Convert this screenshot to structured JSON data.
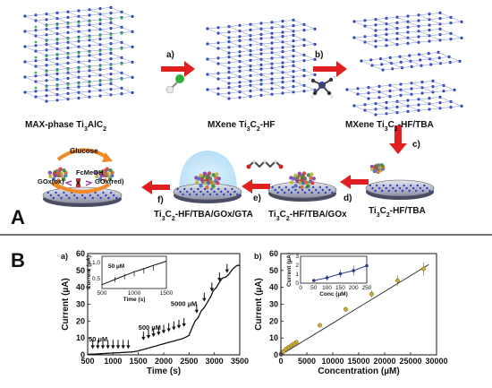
{
  "panelA": {
    "label": "A",
    "steps": {
      "a": "a)",
      "b": "b)",
      "c": "c)",
      "d": "d)",
      "e": "e)",
      "f": "f)"
    },
    "labels": {
      "max_phase": "MAX-phase Ti",
      "max_phase_sub1": "3",
      "max_phase_mid": "AlC",
      "max_phase_sub2": "2",
      "mxene_hf": "MXene Ti",
      "mxene_hf_sub1": "3",
      "mxene_hf_mid": "C",
      "mxene_hf_sub2": "2",
      "mxene_hf_tail": "-HF",
      "mxene_tba": "MXene Ti",
      "mxene_tba_sub1": "3",
      "mxene_tba_mid": "C",
      "mxene_tba_sub2": "2",
      "mxene_tba_tail": "-HF/TBA",
      "ti_hf_tba": "Ti",
      "ti_hf_tba_sub1": "3",
      "ti_hf_tba_mid": "C",
      "ti_hf_tba_sub2": "2",
      "ti_hf_tba_tail": "-HF/TBA",
      "gox": "Ti",
      "gox_sub1": "3",
      "gox_mid": "C",
      "gox_sub2": "2",
      "gox_tail": "-HF/TBA/GOx",
      "gta": "Ti",
      "gta_sub1": "3",
      "gta_mid": "C",
      "gta_sub2": "2",
      "gta_tail": "-HF/TBA/GOx/GTA",
      "glucose": "Glucose",
      "fcmeoh": "FcMeOH",
      "gox_ox": "GOx(ox)",
      "gox_red": "GOx(red)"
    }
  },
  "panelB": {
    "label": "B",
    "chart_data": [
      {
        "type": "line",
        "panel": "a)",
        "xlabel": "Time (s)",
        "ylabel": "Current (µA)",
        "xlim": [
          500,
          3500
        ],
        "ylim": [
          0,
          60
        ],
        "xticks": [
          500,
          1000,
          1500,
          2000,
          2500,
          3000,
          3500
        ],
        "yticks": [
          0,
          10,
          20,
          30,
          40,
          50,
          60
        ],
        "annotations": [
          "50 µM",
          "500 µM",
          "5000 µM"
        ],
        "series": [
          {
            "x": [
              500,
              600,
              650,
              700,
              760,
              820,
              880,
              940,
              1000,
              1060,
              1120,
              1180,
              1240,
              1300,
              1360,
              1420,
              1480,
              1540,
              1600,
              1660,
              1720,
              1780,
              1840,
              1900,
              1960,
              2020,
              2080,
              2140,
              2200,
              2260,
              2320,
              2380,
              2440,
              2500,
              2560,
              2620,
              2680,
              2740,
              2800,
              2860,
              2920,
              2980,
              3040,
              3100,
              3160,
              3220,
              3280,
              3340,
              3400,
              3450,
              3500
            ],
            "y": [
              0.3,
              0.4,
              0.5,
              0.6,
              0.7,
              0.8,
              0.9,
              1.0,
              1.1,
              1.2,
              1.3,
              1.4,
              1.5,
              1.6,
              1.7,
              1.9,
              2.2,
              2.7,
              3.2,
              3.7,
              4.2,
              4.7,
              5.2,
              5.7,
              6.2,
              6.7,
              7.2,
              7.7,
              8.2,
              8.7,
              9.2,
              9.7,
              10.5,
              11.5,
              16.0,
              20.0,
              22.0,
              26.0,
              28.0,
              31.0,
              34.0,
              38.0,
              40.0,
              43.0,
              45.5,
              46.0,
              47.5,
              50.0,
              52.0,
              53.0,
              53.0
            ]
          }
        ],
        "inset": {
          "xlabel": "Time (s)",
          "ylabel": "Current (µA)",
          "xticks": [
            500,
            1000,
            1500
          ],
          "yticks": [
            0.5,
            1.0
          ],
          "ytick_labels": [
            "0.5",
            "1.0"
          ],
          "annotation": "50 µM",
          "x": [
            500,
            600,
            700,
            800,
            900,
            1000,
            1100,
            1200,
            1300,
            1400,
            1500
          ],
          "y": [
            0.32,
            0.4,
            0.48,
            0.56,
            0.64,
            0.72,
            0.78,
            0.85,
            0.92,
            0.98,
            1.05
          ]
        }
      },
      {
        "type": "scatter",
        "panel": "b)",
        "xlabel": "Concentration (µM)",
        "ylabel": "Current (µA)",
        "xlim": [
          0,
          30000
        ],
        "ylim": [
          0,
          60
        ],
        "xticks": [
          0,
          5000,
          10000,
          15000,
          20000,
          25000,
          30000
        ],
        "yticks": [
          0,
          10,
          20,
          30,
          40,
          50,
          60
        ],
        "series": [
          {
            "x": [
              50,
              100,
              150,
              200,
              250,
              500,
              1000,
              1500,
              2000,
              2500,
              3000,
              7500,
              12500,
              17500,
              22500,
              27500
            ],
            "y": [
              0.3,
              0.6,
              0.9,
              1.2,
              1.6,
              2.0,
              3.5,
              4.5,
              5.5,
              6.5,
              7.5,
              17.5,
              27.0,
              36.0,
              44.0,
              51.0
            ],
            "err": [
              0.2,
              0.2,
              0.2,
              0.3,
              0.3,
              0.5,
              0.5,
              0.6,
              0.6,
              0.7,
              0.7,
              1.0,
              1.5,
              2.0,
              3.0,
              4.0
            ]
          }
        ],
        "fit": {
          "x": [
            0,
            28500
          ],
          "y": [
            0.0,
            53.5
          ]
        },
        "inset": {
          "xlabel": "Conc (µM)",
          "ylabel": "Current (µA)",
          "xticks": [
            0,
            50,
            100,
            150,
            200,
            250
          ],
          "yticks": [
            0,
            1,
            2,
            3
          ],
          "x": [
            50,
            100,
            150,
            200,
            250
          ],
          "y": [
            0.3,
            0.6,
            1.05,
            1.4,
            1.95
          ],
          "err": [
            0.15,
            0.3,
            0.45,
            0.55,
            0.75
          ]
        }
      }
    ]
  }
}
